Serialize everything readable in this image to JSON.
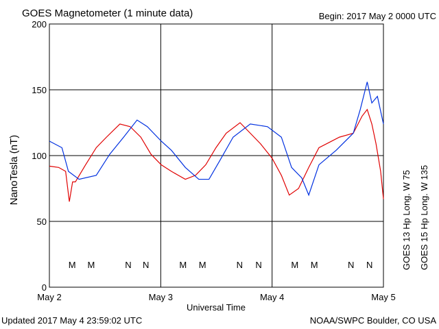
{
  "chart_data": {
    "type": "line",
    "title": "GOES Magnetometer (1 minute data)",
    "begin": "Begin:  2017 May 2 0000 UTC",
    "updated": "Updated 2017 May  4 23:59:02 UTC",
    "credit": "NOAA/SWPC Boulder, CO USA",
    "xlabel": "Universal Time",
    "ylabel": "NanoTesla (nT)",
    "xlim": [
      0,
      72
    ],
    "xticks": [
      {
        "value": 0,
        "label": "May 2"
      },
      {
        "value": 24,
        "label": "May 3"
      },
      {
        "value": 48,
        "label": "May 4"
      },
      {
        "value": 72,
        "label": "May 5"
      }
    ],
    "ylim": [
      0,
      200
    ],
    "yticks": [
      0,
      50,
      100,
      150,
      200
    ],
    "grid": true,
    "series": [
      {
        "name": "GOES 13 Hp  Long. W 75",
        "color": "#e00000",
        "x": [
          0,
          2,
          3.5,
          4.3,
          5,
          5.6,
          7.8,
          10.1,
          12.3,
          15.2,
          17.4,
          19.7,
          21.9,
          24.1,
          26.3,
          29.3,
          31.5,
          33.7,
          35.9,
          38.1,
          41.1,
          43.3,
          45.5,
          48,
          50,
          51.7,
          53.7,
          55.9,
          58.1,
          60.3,
          62.5,
          65.5,
          67.4,
          68.5,
          69.5,
          70.4,
          71.4,
          72
        ],
        "values": [
          92,
          91,
          88,
          65,
          80,
          80,
          93,
          106,
          114,
          124,
          122,
          114,
          101,
          93,
          88,
          82,
          85,
          93,
          106,
          117,
          125,
          117,
          109,
          98,
          85,
          70,
          75,
          91,
          106,
          110,
          114,
          117,
          130,
          135,
          124,
          109,
          88,
          67
        ]
      },
      {
        "name": "GOES 15 Hp  Long. W 135",
        "color": "#0030e0",
        "x": [
          0,
          2.7,
          4.1,
          6.4,
          10.1,
          13,
          16,
          18.9,
          21.1,
          24.1,
          26.3,
          29.3,
          32.2,
          34.4,
          36.7,
          39.6,
          43.3,
          47,
          50,
          52.2,
          54.4,
          55.9,
          58.1,
          61.8,
          65.5,
          67,
          68.5,
          69.5,
          70.7,
          72
        ],
        "values": [
          111,
          106,
          88,
          82,
          85,
          101,
          114,
          127,
          122,
          111,
          104,
          91,
          82,
          82,
          96,
          114,
          124,
          122,
          114,
          91,
          83,
          70,
          93,
          104,
          117,
          135,
          156,
          140,
          145,
          124
        ]
      }
    ],
    "markers": [
      {
        "label": "M",
        "x": 4.9,
        "color": "#e00000"
      },
      {
        "label": "M",
        "x": 9,
        "color": "#0030e0"
      },
      {
        "label": "N",
        "x": 17,
        "color": "#e00000"
      },
      {
        "label": "N",
        "x": 20.8,
        "color": "#0030e0"
      },
      {
        "label": "M",
        "x": 28.8,
        "color": "#e00000"
      },
      {
        "label": "M",
        "x": 33,
        "color": "#0030e0"
      },
      {
        "label": "N",
        "x": 41,
        "color": "#e00000"
      },
      {
        "label": "N",
        "x": 45.1,
        "color": "#0030e0"
      },
      {
        "label": "M",
        "x": 52.9,
        "color": "#e00000"
      },
      {
        "label": "M",
        "x": 57.1,
        "color": "#0030e0"
      },
      {
        "label": "N",
        "x": 65,
        "color": "#e00000"
      },
      {
        "label": "N",
        "x": 69,
        "color": "#0030e0"
      }
    ]
  }
}
